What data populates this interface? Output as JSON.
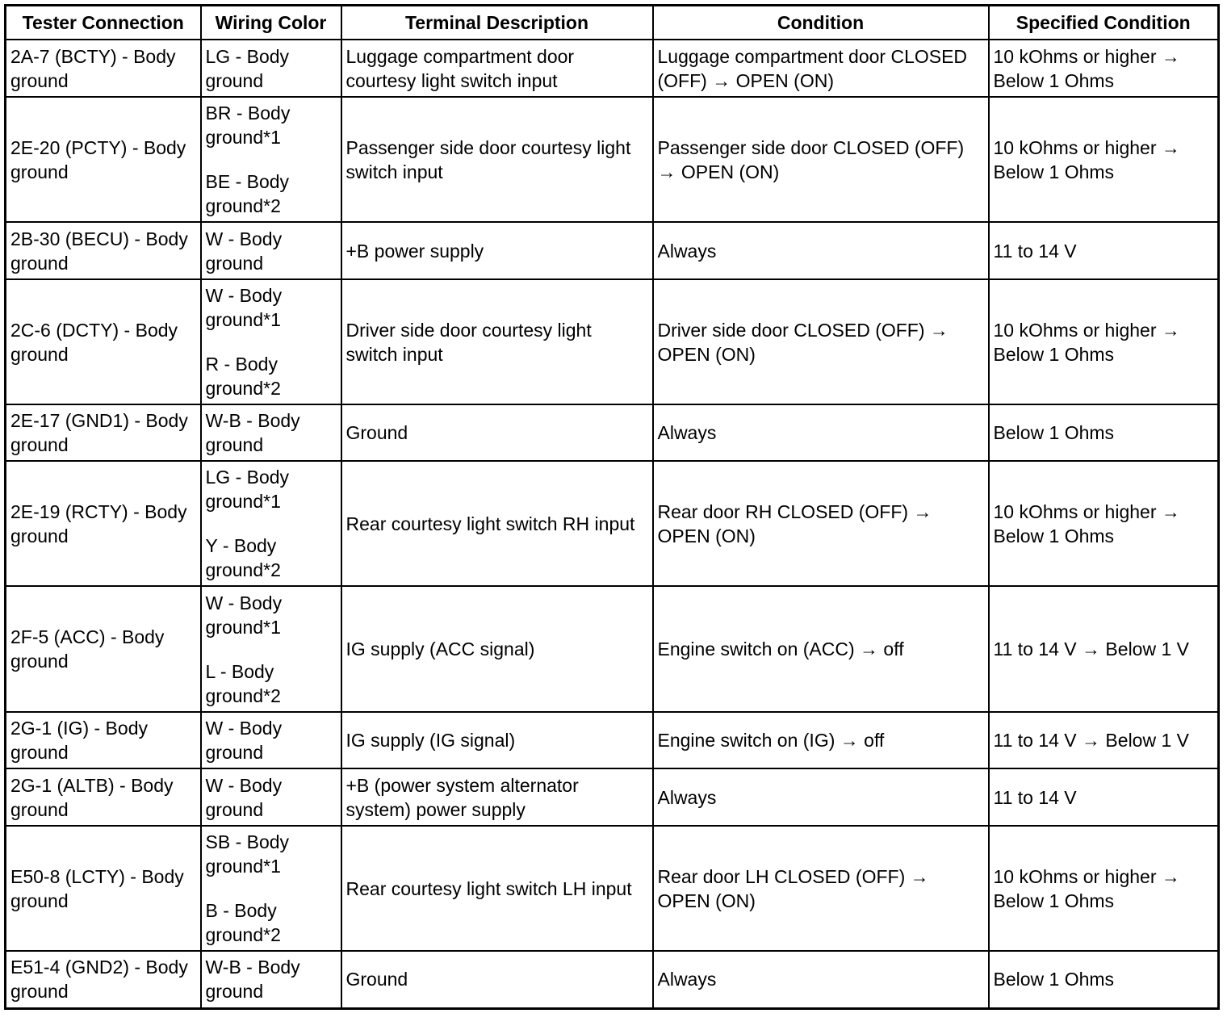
{
  "headers": [
    "Tester Connection",
    "Wiring Color",
    "Terminal Description",
    "Condition",
    "Specified Condition"
  ],
  "rows": [
    {
      "tester": "2A-7 (BCTY) - Body ground",
      "wiring": [
        "LG - Body ground"
      ],
      "description": "Luggage compartment door courtesy light switch input",
      "condition": "Luggage compartment door CLOSED (OFF) → OPEN (ON)",
      "specified": "10 kOhms or higher → Below 1 Ohms"
    },
    {
      "tester": "2E-20 (PCTY) - Body ground",
      "wiring": [
        "BR - Body ground*1",
        "BE - Body ground*2"
      ],
      "description": "Passenger side door courtesy light switch input",
      "condition": "Passenger side door CLOSED (OFF) → OPEN (ON)",
      "specified": "10 kOhms or higher → Below 1 Ohms"
    },
    {
      "tester": "2B-30 (BECU) - Body ground",
      "wiring": [
        "W - Body ground"
      ],
      "description": "+B power supply",
      "condition": "Always",
      "specified": "11 to 14 V"
    },
    {
      "tester": "2C-6 (DCTY) - Body ground",
      "wiring": [
        "W - Body ground*1",
        "R - Body ground*2"
      ],
      "description": "Driver side door courtesy light switch input",
      "condition": "Driver side door CLOSED (OFF) → OPEN (ON)",
      "specified": "10 kOhms or higher → Below 1 Ohms"
    },
    {
      "tester": "2E-17 (GND1) - Body ground",
      "wiring": [
        "W-B - Body ground"
      ],
      "description": "Ground",
      "condition": "Always",
      "specified": "Below 1 Ohms"
    },
    {
      "tester": "2E-19 (RCTY) - Body ground",
      "wiring": [
        "LG - Body ground*1",
        "Y - Body ground*2"
      ],
      "description": "Rear courtesy light switch RH input",
      "condition": "Rear door RH CLOSED (OFF) → OPEN (ON)",
      "specified": "10 kOhms or higher → Below 1 Ohms"
    },
    {
      "tester": "2F-5 (ACC) - Body ground",
      "wiring": [
        "W - Body ground*1",
        "L - Body ground*2"
      ],
      "description": "IG supply (ACC signal)",
      "condition": "Engine switch on (ACC) → off",
      "specified": "11 to 14 V → Below 1 V"
    },
    {
      "tester": "2G-1 (IG) - Body ground",
      "wiring": [
        "W - Body ground"
      ],
      "description": "IG supply (IG signal)",
      "condition": "Engine switch on (IG) → off",
      "specified": "11 to 14 V → Below 1 V"
    },
    {
      "tester": "2G-1 (ALTB) - Body ground",
      "wiring": [
        "W - Body ground"
      ],
      "description": "+B (power system alternator system) power supply",
      "condition": "Always",
      "specified": "11 to 14 V"
    },
    {
      "tester": "E50-8 (LCTY) - Body ground",
      "wiring": [
        "SB - Body ground*1",
        "B - Body ground*2"
      ],
      "description": "Rear courtesy light switch LH input",
      "condition": "Rear door LH CLOSED (OFF) → OPEN (ON)",
      "specified": "10 kOhms or higher → Below 1 Ohms"
    },
    {
      "tester": "E51-4 (GND2) - Body ground",
      "wiring": [
        "W-B - Body ground"
      ],
      "description": "Ground",
      "condition": "Always",
      "specified": "Below 1 Ohms"
    }
  ]
}
